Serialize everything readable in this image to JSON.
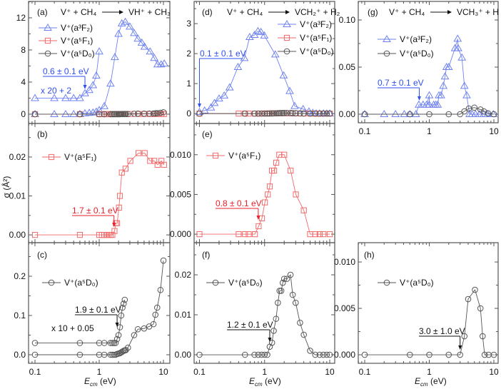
{
  "figure": {
    "ylabel": "σ (Å²)",
    "xlabel": "E",
    "xlabel_sub": "cm",
    "xlabel_unit": " (eV)"
  },
  "colors": {
    "a3F2": "#6f82f0",
    "a5F1": "#f06a6a",
    "a5D0": "#555555",
    "blue_text": "#2f50ee",
    "red_text": "#e8202a"
  },
  "chart_data": [
    {
      "panel": "(a)",
      "type": "line",
      "xscale": "log",
      "xlim": [
        0.0794,
        12.59
      ],
      "ylim": [
        -1.16,
        14.04
      ],
      "reactants": "V⁺ + CH₄",
      "products": "VH⁺ + CH₃",
      "yticks": [
        0,
        4,
        8,
        12
      ],
      "ytick_labels": [
        "0",
        "4",
        "8",
        "12"
      ],
      "xtick_labels": [],
      "scale_note": "x 20 + 2",
      "annotations": [
        {
          "text": "0.6 ± 0.1 eV",
          "threshold": 0.6,
          "color": "blue"
        }
      ],
      "series": [
        {
          "name": "V⁺(a³F₂)",
          "state": "a3F2",
          "marker": "triangle",
          "x": [
            0.1,
            0.2,
            0.3,
            0.4,
            0.5,
            0.6,
            0.7,
            0.8,
            0.9,
            1.0,
            1.2,
            1.5,
            1.75,
            2.0,
            2.25,
            2.55,
            3.0,
            3.5,
            4.0,
            4.6,
            5.1,
            6.2,
            7.2,
            8.1,
            9.2,
            10.3
          ],
          "y": [
            0,
            0,
            0,
            0,
            0,
            0.1,
            0.15,
            0.2,
            0.3,
            0.5,
            1.0,
            3.8,
            7.1,
            10.0,
            11.3,
            11.5,
            10.9,
            10.1,
            9.4,
            8.9,
            8.4,
            7.8,
            7.0,
            6.2,
            6.2,
            6.3
          ]
        },
        {
          "state": "a3F2",
          "marker": "triangle",
          "x": [
            0.1,
            0.2,
            0.3,
            0.4,
            0.5,
            0.6,
            0.7,
            0.8,
            0.9,
            1.0
          ],
          "y": [
            2,
            2,
            2,
            2,
            2,
            2.6,
            3.0,
            3.6,
            4.8,
            7.8
          ]
        },
        {
          "name": "V⁺(a⁵F₁)",
          "state": "a5F1",
          "marker": "square",
          "x": [
            0.1,
            0.5,
            1.0,
            1.1,
            1.2,
            1.3,
            1.4,
            1.5,
            1.6,
            1.73,
            1.82,
            1.9,
            2.03,
            2.1,
            2.25,
            2.57,
            3.05,
            4.1,
            5.1,
            6.2,
            7.2,
            8.1,
            9.3,
            10.2
          ],
          "y": [
            0,
            0,
            0,
            0,
            0,
            0,
            0,
            0,
            0,
            0.001,
            0.003,
            0.003,
            0.007,
            0.01,
            0.016,
            0.017,
            0.019,
            0.021,
            0.021,
            0.019,
            0.019,
            0.018,
            0.019,
            0.018
          ]
        },
        {
          "name": "V⁺(a⁵D₀)",
          "state": "a5D0",
          "marker": "circle",
          "x": [
            0.1,
            0.5,
            1.0,
            1.2,
            1.5,
            1.6,
            1.7,
            1.8,
            1.9,
            2.0,
            2.1,
            2.2,
            2.3,
            2.4,
            2.5,
            2.6,
            2.8,
            3.5,
            4.0,
            5.0,
            6.0,
            7.0,
            7.5,
            8.0,
            9.0,
            10.0
          ],
          "y": [
            0,
            0,
            0,
            0,
            0,
            0,
            0,
            0,
            0.002,
            0.003,
            0.004,
            0.006,
            0.008,
            0.01,
            0.011,
            0.012,
            0.018,
            0.05,
            0.065,
            0.067,
            0.072,
            0.078,
            0.102,
            0.12,
            0.165,
            0.24
          ]
        }
      ]
    },
    {
      "panel": "(b)",
      "type": "line",
      "xscale": "log",
      "xlim": [
        0.0794,
        12.59
      ],
      "ylim": [
        -0.002,
        0.0286
      ],
      "yticks": [
        0,
        0.01,
        0.02
      ],
      "ytick_labels": [
        "0.00",
        "0.01",
        "0.02"
      ],
      "xtick_labels": [],
      "annotations": [
        {
          "text": "1.7 ± 0.1 eV",
          "threshold": 1.7,
          "color": "red"
        }
      ],
      "series": [
        {
          "name": "V⁺(a⁵F₁)",
          "state": "a5F1",
          "marker": "square",
          "x": [
            0.1,
            0.5,
            1.0,
            1.1,
            1.2,
            1.3,
            1.4,
            1.5,
            1.6,
            1.73,
            1.82,
            1.9,
            2.03,
            2.1,
            2.25,
            2.57,
            3.05,
            4.1,
            5.1,
            6.2,
            7.2,
            8.1,
            9.3,
            10.2
          ],
          "y": [
            0,
            0,
            0,
            0,
            0,
            0,
            0,
            0,
            0,
            0.001,
            0.003,
            0.003,
            0.007,
            0.01,
            0.016,
            0.017,
            0.019,
            0.021,
            0.021,
            0.019,
            0.019,
            0.018,
            0.019,
            0.018
          ]
        }
      ]
    },
    {
      "panel": "(c)",
      "type": "line",
      "xscale": "log",
      "xlim": [
        0.0794,
        12.59
      ],
      "ylim": [
        -0.0218,
        0.2855
      ],
      "yticks": [
        0,
        0.1,
        0.2
      ],
      "ytick_labels": [
        "0.0",
        "0.1",
        "0.2"
      ],
      "xtick_labels": [
        "0.1",
        "1",
        "10"
      ],
      "scale_note": "x 10 + 0.05",
      "annotations": [
        {
          "text": "1.9 ± 0.1 eV",
          "threshold": 1.9,
          "color": "black"
        }
      ],
      "series": [
        {
          "name": "V⁺(a⁵D₀)",
          "state": "a5D0",
          "marker": "circle",
          "x": [
            0.1,
            0.5,
            1.0,
            1.2,
            1.5,
            1.6,
            1.7,
            1.8,
            1.9,
            2.0,
            2.1,
            2.2,
            2.3,
            2.4,
            2.5,
            2.6,
            2.8,
            3.5,
            4.0,
            5.0,
            6.0,
            7.0,
            7.5,
            8.0,
            9.0,
            10.0
          ],
          "y": [
            0,
            0,
            0,
            0,
            0,
            0,
            0,
            0,
            0.002,
            0.003,
            0.004,
            0.006,
            0.008,
            0.01,
            0.011,
            0.012,
            0.018,
            0.05,
            0.065,
            0.067,
            0.072,
            0.078,
            0.102,
            0.12,
            0.165,
            0.24
          ]
        },
        {
          "state": "a5D0",
          "marker": "circle",
          "x": [
            0.1,
            0.5,
            1.0,
            1.2,
            1.5,
            1.6,
            1.7,
            1.8,
            1.9,
            2.0,
            2.1,
            2.2,
            2.3,
            2.4,
            2.5
          ],
          "y": [
            0.03,
            0.03,
            0.03,
            0.03,
            0.03,
            0.03,
            0.03,
            0.03,
            0.04,
            0.05,
            0.07,
            0.1,
            0.12,
            0.13,
            0.14
          ]
        }
      ]
    },
    {
      "panel": "(d)",
      "type": "line",
      "xscale": "log",
      "xlim": [
        0.0828,
        11.93
      ],
      "ylim": [
        -0.33,
        3.74
      ],
      "reactants": "V⁺ + CH₄",
      "products": "VCH₂⁺ + H₂",
      "yticks": [
        0,
        1,
        2,
        3
      ],
      "ytick_labels": [
        "0",
        "1",
        "2",
        "3"
      ],
      "xtick_labels": [],
      "annotations": [
        {
          "text": "0.1 ± 0.1 eV",
          "threshold": 0.1,
          "color": "blue"
        }
      ],
      "series": [
        {
          "name": "V⁺(a³F₂)",
          "state": "a3F2",
          "marker": "triangle",
          "x": [
            0.1,
            0.12,
            0.15,
            0.17,
            0.2,
            0.24,
            0.29,
            0.39,
            0.49,
            0.59,
            0.7,
            0.79,
            0.88,
            0.99,
            1.46,
            1.96,
            2.43,
            2.9,
            3.9,
            4.8,
            5.5,
            6.2,
            7,
            8,
            9,
            10
          ],
          "y": [
            0.05,
            0.1,
            0.2,
            0.35,
            0.5,
            0.6,
            0.87,
            1.55,
            1.85,
            2.55,
            2.62,
            2.75,
            2.72,
            2.6,
            1.97,
            1.27,
            0.75,
            0.25,
            0.15,
            0.07,
            0.02,
            0,
            0,
            0,
            0,
            0
          ]
        },
        {
          "name": "V⁺(a⁵F₁)",
          "state": "a5F1",
          "marker": "square",
          "x": [
            0.1,
            0.4,
            0.5,
            0.57,
            0.71,
            0.81,
            0.91,
            1.01,
            1.12,
            1.2,
            1.3,
            1.4,
            1.51,
            1.68,
            2.0,
            2.51,
            3.02,
            4.0,
            5.0,
            6,
            7,
            8,
            10
          ],
          "y": [
            0,
            0,
            0,
            0,
            0,
            0.001,
            0.002,
            0.004,
            0.005,
            0.006,
            0.008,
            0.008,
            0.009,
            0.01,
            0.01,
            0.008,
            0.005,
            0.003,
            0,
            0,
            0,
            0,
            0
          ]
        },
        {
          "name": "V⁺(a⁵D₀)",
          "state": "a5D0",
          "marker": "circle",
          "x": [
            0.1,
            0.5,
            0.7,
            0.8,
            0.9,
            1.0,
            1.1,
            1.2,
            1.3,
            1.38,
            1.5,
            1.6,
            1.7,
            1.8,
            1.9,
            2.0,
            2.2,
            2.5,
            2.7,
            3.0,
            3.5,
            4.0,
            5.0,
            6,
            7,
            8,
            9,
            10
          ],
          "y": [
            0,
            0,
            0,
            0,
            0,
            0,
            0,
            0.002,
            0.003,
            0.006,
            0.009,
            0.013,
            0.016,
            0.016,
            0.018,
            0.019,
            0.019,
            0.02,
            0.015,
            0.013,
            0.008,
            0.005,
            0.001,
            0,
            0,
            0,
            0,
            0
          ]
        }
      ]
    },
    {
      "panel": "(e)",
      "type": "line",
      "xscale": "log",
      "xlim": [
        0.0828,
        11.93
      ],
      "ylim": [
        -0.00107,
        0.01393
      ],
      "yticks": [
        0,
        0.005,
        0.01
      ],
      "ytick_labels": [
        "0.000",
        "0.005",
        "0.010"
      ],
      "xtick_labels": [],
      "annotations": [
        {
          "text": "0.8 ± 0.1 eV",
          "threshold": 0.8,
          "color": "red"
        }
      ],
      "series": [
        {
          "name": "V⁺(a⁵F₁)",
          "state": "a5F1",
          "marker": "square",
          "x": [
            0.1,
            0.4,
            0.5,
            0.57,
            0.71,
            0.81,
            0.91,
            1.01,
            1.12,
            1.2,
            1.3,
            1.4,
            1.51,
            1.68,
            2.0,
            2.51,
            3.02,
            4.0,
            5.0,
            6,
            7,
            8,
            10
          ],
          "y": [
            0,
            0,
            0,
            0,
            0,
            0.001,
            0.002,
            0.004,
            0.005,
            0.006,
            0.008,
            0.008,
            0.009,
            0.01,
            0.01,
            0.008,
            0.005,
            0.003,
            0,
            0,
            0,
            0,
            0
          ]
        }
      ]
    },
    {
      "panel": "(f)",
      "type": "line",
      "xscale": "log",
      "xlim": [
        0.0828,
        11.93
      ],
      "ylim": [
        -0.00214,
        0.02804
      ],
      "yticks": [
        0,
        0.01,
        0.02
      ],
      "ytick_labels": [
        "0.00",
        "0.01",
        "0.02"
      ],
      "xtick_labels": [
        "0.1",
        "1",
        "10"
      ],
      "annotations": [
        {
          "text": "1.2 ± 0.1 eV",
          "threshold": 1.2,
          "color": "black"
        }
      ],
      "series": [
        {
          "name": "V⁺(a⁵D₀)",
          "state": "a5D0",
          "marker": "circle",
          "x": [
            0.1,
            0.5,
            0.7,
            0.8,
            0.9,
            1.0,
            1.1,
            1.2,
            1.3,
            1.38,
            1.5,
            1.6,
            1.7,
            1.8,
            1.9,
            2.0,
            2.2,
            2.5,
            2.7,
            3.0,
            3.5,
            4.0,
            5.0,
            6,
            7,
            8,
            9,
            10
          ],
          "y": [
            0,
            0,
            0,
            0,
            0,
            0,
            0,
            0.002,
            0.003,
            0.006,
            0.009,
            0.013,
            0.016,
            0.016,
            0.018,
            0.019,
            0.019,
            0.02,
            0.015,
            0.013,
            0.008,
            0.005,
            0.001,
            0,
            0,
            0,
            0,
            0
          ]
        }
      ]
    },
    {
      "panel": "(g)",
      "type": "line",
      "xscale": "log",
      "xlim": [
        0.0795,
        11.65
      ],
      "ylim": [
        -0.0091,
        0.1197
      ],
      "reactants": "V⁺ + CH₄",
      "products": "VCH₃⁺ + H",
      "yticks": [
        0,
        0.05,
        0.1
      ],
      "ytick_labels": [
        "0.00",
        "0.05",
        "0.10"
      ],
      "xtick_labels": [
        "0.1",
        "1",
        "10"
      ],
      "annotations": [
        {
          "text": "0.7 ± 0.1 eV",
          "threshold": 0.7,
          "color": "blue"
        }
      ],
      "series": [
        {
          "name": "V⁺(a³F₂)",
          "state": "a3F2",
          "marker": "triangle",
          "x": [
            0.1,
            0.2,
            0.3,
            0.41,
            0.5,
            0.62,
            0.69,
            0.8,
            0.91,
            1.0,
            1.0,
            1.17,
            1.26,
            1.35,
            1.41,
            1.52,
            1.65,
            1.75,
            1.85,
            2.0,
            2.5,
            2.75,
            2.8,
            3.2,
            3.5,
            3.8,
            4.2,
            4.6,
            5.2,
            6,
            7,
            8,
            9.8
          ],
          "y": [
            0,
            0,
            0,
            0,
            0,
            0,
            0.01,
            0.01,
            0.01,
            0.02,
            0.01,
            0.01,
            0.01,
            0.01,
            0.02,
            0.02,
            0.03,
            0.04,
            0.05,
            0.05,
            0.07,
            0.08,
            0.07,
            0.06,
            0.03,
            0.02,
            0,
            0,
            0,
            0,
            0,
            0,
            0
          ]
        },
        {
          "name": "V⁺(a⁵D₀)",
          "state": "a5D0",
          "marker": "circle",
          "x": [
            0.1,
            0.5,
            1.0,
            2.0,
            3.0,
            3.5,
            4.1,
            5.0,
            6.2,
            7.0,
            8.1,
            10
          ],
          "y": [
            0,
            0,
            0,
            0,
            0,
            0.003,
            0.006,
            0.007,
            0.005,
            0.003,
            0.001,
            0
          ]
        }
      ]
    },
    {
      "panel": "(h)",
      "type": "line",
      "xscale": "log",
      "xlim": [
        0.0795,
        11.65
      ],
      "ylim": [
        -0.00092,
        0.01208
      ],
      "yticks": [
        0,
        0.005,
        0.01
      ],
      "ytick_labels": [
        "0.000",
        "0.005",
        "0.010"
      ],
      "xtick_labels": [
        "0.1",
        "1",
        "10"
      ],
      "annotations": [
        {
          "text": "3.0 ± 1.0 eV",
          "threshold": 3.0,
          "color": "black"
        }
      ],
      "series": [
        {
          "name": "V⁺(a⁵D₀)",
          "state": "a5D0",
          "marker": "circle",
          "x": [
            0.1,
            0.5,
            1.0,
            2.0,
            3.0,
            3.5,
            4.0,
            5.1,
            6.2,
            6.7,
            7.2,
            8.3,
            10
          ],
          "y": [
            0,
            0,
            0,
            0,
            0,
            0.002,
            0.006,
            0.007,
            0.005,
            0.002,
            0,
            0,
            0
          ]
        }
      ]
    }
  ]
}
